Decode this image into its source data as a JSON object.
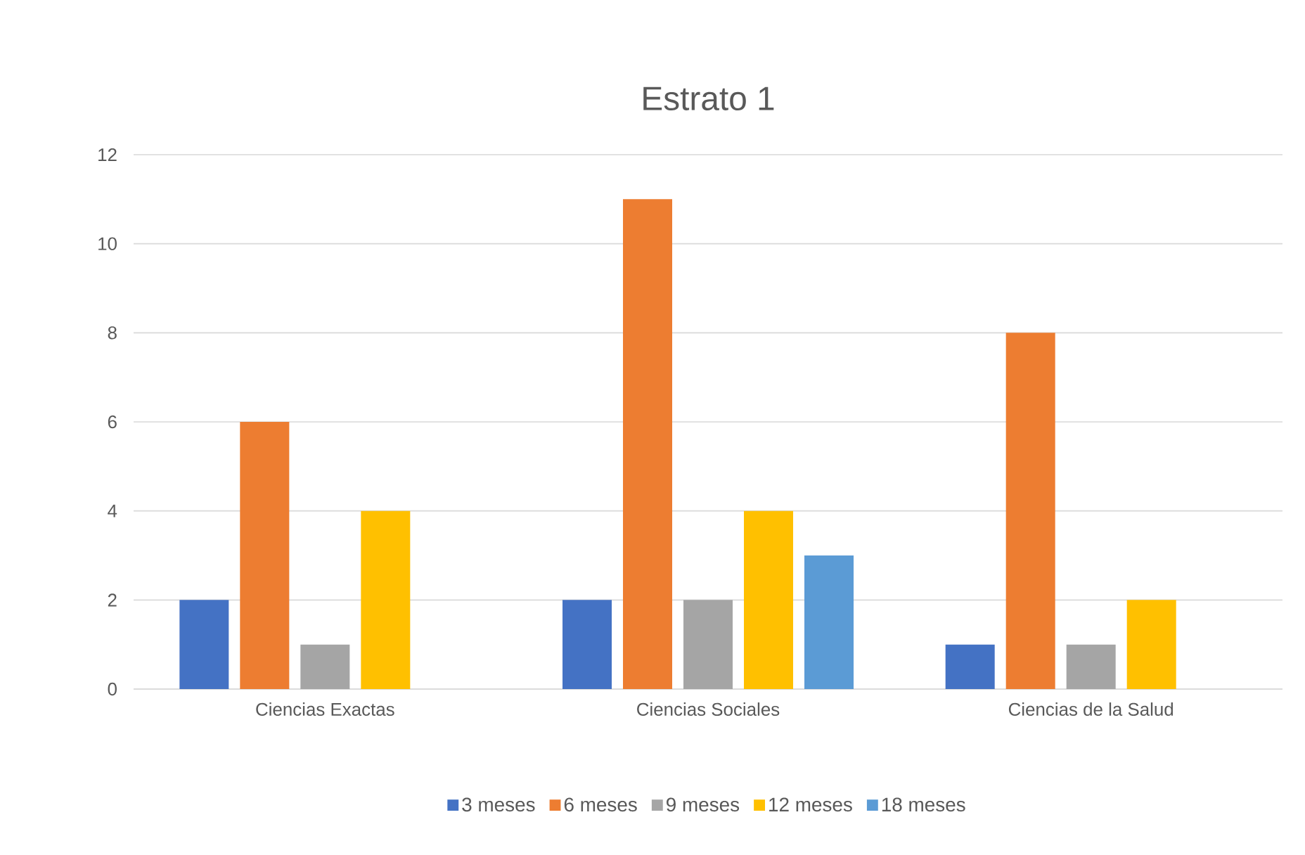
{
  "chart_data": {
    "type": "bar",
    "title": "Estrato 1",
    "categories": [
      "Ciencias Exactas",
      "Ciencias Sociales",
      "Ciencias de la Salud"
    ],
    "series": [
      {
        "name": "3 meses",
        "color": "#4472c4",
        "values": [
          2,
          2,
          1
        ]
      },
      {
        "name": "6 meses",
        "color": "#ed7d31",
        "values": [
          6,
          11,
          8
        ]
      },
      {
        "name": "9 meses",
        "color": "#a5a5a5",
        "values": [
          1,
          2,
          1
        ]
      },
      {
        "name": "12 meses",
        "color": "#ffc000",
        "values": [
          4,
          4,
          2
        ]
      },
      {
        "name": "18 meses",
        "color": "#5b9bd5",
        "values": [
          null,
          3,
          null
        ]
      }
    ],
    "ylim": [
      0,
      12
    ],
    "yticks": [
      0,
      2,
      4,
      6,
      8,
      10,
      12
    ],
    "grid": "y",
    "legend": "bottom"
  }
}
